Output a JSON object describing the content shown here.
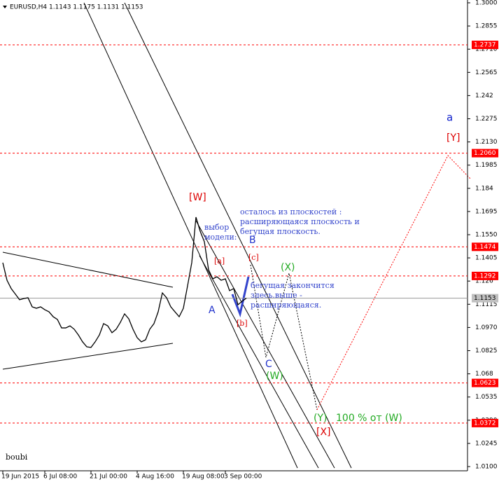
{
  "chart_data": {
    "type": "line",
    "symbol_header": "EURUSD,H4  1.1143 1.1175 1.1131 1.1153",
    "watermark": "boubi",
    "color": "#000000",
    "categories": [
      "19 Jun 2015",
      null,
      null,
      null,
      null,
      null,
      null,
      null,
      null,
      null,
      "6 Jul 08:00",
      null,
      null,
      null,
      null,
      null,
      null,
      null,
      null,
      null,
      null,
      "21 Jul 00:00",
      null,
      null,
      null,
      null,
      null,
      null,
      null,
      null,
      null,
      null,
      "4 Aug 16:00",
      null,
      null,
      null,
      null,
      null,
      null,
      null,
      null,
      null,
      null,
      "19 Aug 08:00",
      null,
      null,
      null,
      null,
      null,
      null,
      null,
      null,
      null,
      "3 Sep 00:00",
      null,
      null,
      null,
      null,
      null
    ],
    "values": [
      1.1375,
      1.1265,
      1.1213,
      1.1178,
      1.1143,
      1.1151,
      1.1156,
      1.1099,
      1.109,
      1.1099,
      1.1081,
      1.1068,
      1.1037,
      1.102,
      1.0967,
      1.0967,
      1.098,
      1.0959,
      1.0923,
      1.088,
      1.0849,
      1.0845,
      1.088,
      1.0923,
      1.0994,
      1.098,
      1.0937,
      1.0959,
      1.1002,
      1.1055,
      1.1024,
      1.0959,
      1.0906,
      1.088,
      1.0893,
      1.0959,
      1.0994,
      1.1068,
      1.1186,
      1.1156,
      1.1099,
      1.1068,
      1.1037,
      1.109,
      1.123,
      1.1375,
      1.166,
      1.1572,
      1.1506,
      1.1331,
      1.1274,
      1.1287,
      1.1265,
      1.1274,
      1.12,
      1.1213,
      1.1112,
      1.1134,
      1.1153
    ],
    "ylim": [
      1.01,
      1.3
    ],
    "yticks": [
      {
        "value": 1.3,
        "label": "1.3000"
      },
      1.2855,
      {
        "value": 1.271,
        "label": "1.2710"
      },
      1.2565,
      1.242,
      1.2275,
      {
        "value": 1.213,
        "label": "1.2130"
      },
      1.1985,
      1.184,
      1.1695,
      {
        "value": 1.155,
        "label": "1.1550"
      },
      1.1405,
      1.126,
      1.1115,
      {
        "value": 1.097,
        "label": "1.0970"
      },
      1.0825,
      1.068,
      1.0535,
      {
        "value": 1.039,
        "label": "1.0390"
      },
      1.0245,
      {
        "value": 1.01,
        "label": "1.0100"
      }
    ],
    "levels": [
      1.2737,
      {
        "value": 1.206,
        "label": "1.2060"
      },
      1.1474,
      1.1292,
      1.0623,
      1.0372
    ],
    "level_color": "#ff0000",
    "current_price": 1.1153,
    "annotations": [
      "[W]",
      "[a]",
      "[c]",
      "[b]",
      "A",
      "B",
      "C",
      "(X)",
      "(W)",
      "(Y)",
      "100 % от (W)",
      "[X]",
      "[Y]",
      "a",
      "выбор",
      "модели:",
      "осталось из плоскостей :",
      "расширяющаяся плоскость и",
      "бегущая плоскость.",
      "бегущая закончится",
      "здесь.выше -",
      "расширяющаяся."
    ]
  }
}
